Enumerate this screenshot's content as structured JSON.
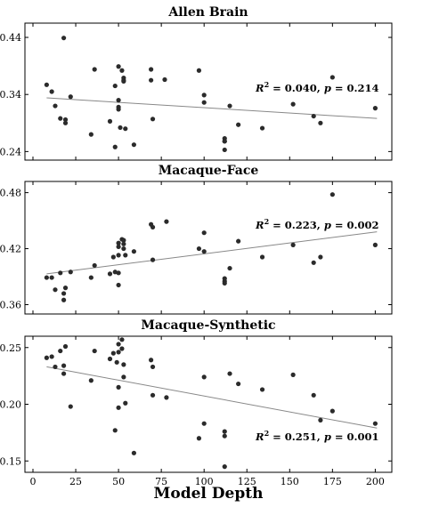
{
  "chart_data": [
    {
      "type": "scatter",
      "title": "Allen Brain",
      "xlim": [
        0,
        205
      ],
      "ylim": [
        0.225,
        0.465
      ],
      "yticks": [
        0.24,
        0.34,
        0.44
      ],
      "ytick_labels": [
        "0.24",
        "0.34",
        "0.44"
      ],
      "fit_line": {
        "x": [
          8,
          201
        ],
        "y": [
          0.334,
          0.298
        ]
      },
      "annotation": {
        "r2_label": "R",
        "r2_value": "= 0.040",
        "p_label": "p",
        "p_value": "= 0.214"
      },
      "points": [
        [
          8,
          0.357
        ],
        [
          11,
          0.345
        ],
        [
          13,
          0.32
        ],
        [
          16,
          0.298
        ],
        [
          18,
          0.439
        ],
        [
          19,
          0.296
        ],
        [
          19,
          0.29
        ],
        [
          22,
          0.336
        ],
        [
          34,
          0.27
        ],
        [
          36,
          0.384
        ],
        [
          45,
          0.293
        ],
        [
          48,
          0.248
        ],
        [
          48,
          0.355
        ],
        [
          50,
          0.389
        ],
        [
          50,
          0.33
        ],
        [
          50,
          0.318
        ],
        [
          50,
          0.314
        ],
        [
          51,
          0.282
        ],
        [
          52,
          0.382
        ],
        [
          53,
          0.369
        ],
        [
          53,
          0.365
        ],
        [
          53,
          0.363
        ],
        [
          54,
          0.28
        ],
        [
          59,
          0.252
        ],
        [
          69,
          0.384
        ],
        [
          69,
          0.365
        ],
        [
          70,
          0.297
        ],
        [
          77,
          0.366
        ],
        [
          97,
          0.382
        ],
        [
          100,
          0.339
        ],
        [
          100,
          0.326
        ],
        [
          112,
          0.263
        ],
        [
          112,
          0.258
        ],
        [
          112,
          0.258
        ],
        [
          112,
          0.243
        ],
        [
          115,
          0.32
        ],
        [
          120,
          0.287
        ],
        [
          134,
          0.281
        ],
        [
          152,
          0.323
        ],
        [
          164,
          0.302
        ],
        [
          168,
          0.29
        ],
        [
          175,
          0.37
        ],
        [
          200,
          0.316
        ]
      ]
    },
    {
      "type": "scatter",
      "title": "Macaque-Face",
      "xlim": [
        0,
        205
      ],
      "ylim": [
        0.35,
        0.492
      ],
      "yticks": [
        0.36,
        0.42,
        0.48
      ],
      "ytick_labels": [
        "0.36",
        "0.42",
        "0.48"
      ],
      "fit_line": {
        "x": [
          8,
          201
        ],
        "y": [
          0.393,
          0.438
        ]
      },
      "annotation": {
        "r2_label": "R",
        "r2_value": "= 0.223",
        "p_label": "p",
        "p_value": "= 0.002"
      },
      "points": [
        [
          8,
          0.389
        ],
        [
          11,
          0.389
        ],
        [
          13,
          0.376
        ],
        [
          16,
          0.394
        ],
        [
          18,
          0.372
        ],
        [
          18,
          0.365
        ],
        [
          19,
          0.378
        ],
        [
          22,
          0.395
        ],
        [
          34,
          0.389
        ],
        [
          36,
          0.402
        ],
        [
          45,
          0.393
        ],
        [
          47,
          0.411
        ],
        [
          48,
          0.395
        ],
        [
          50,
          0.426
        ],
        [
          50,
          0.422
        ],
        [
          50,
          0.413
        ],
        [
          50,
          0.394
        ],
        [
          50,
          0.381
        ],
        [
          52,
          0.43
        ],
        [
          53,
          0.429
        ],
        [
          53,
          0.425
        ],
        [
          53,
          0.42
        ],
        [
          54,
          0.413
        ],
        [
          59,
          0.417
        ],
        [
          69,
          0.446
        ],
        [
          70,
          0.443
        ],
        [
          70,
          0.408
        ],
        [
          78,
          0.449
        ],
        [
          97,
          0.42
        ],
        [
          100,
          0.437
        ],
        [
          100,
          0.417
        ],
        [
          112,
          0.388
        ],
        [
          112,
          0.385
        ],
        [
          112,
          0.383
        ],
        [
          115,
          0.399
        ],
        [
          120,
          0.428
        ],
        [
          134,
          0.411
        ],
        [
          152,
          0.424
        ],
        [
          164,
          0.405
        ],
        [
          168,
          0.411
        ],
        [
          175,
          0.478
        ],
        [
          200,
          0.424
        ]
      ]
    },
    {
      "type": "scatter",
      "title": "Macaque-Synthetic",
      "xlim": [
        0,
        205
      ],
      "ylim": [
        0.14,
        0.26
      ],
      "yticks": [
        0.15,
        0.2,
        0.25
      ],
      "ytick_labels": [
        "0.15",
        "0.20",
        "0.25"
      ],
      "xticks": [
        0,
        25,
        50,
        75,
        100,
        125,
        150,
        175,
        200
      ],
      "xtick_labels": [
        "0",
        "25",
        "50",
        "75",
        "100",
        "125",
        "150",
        "175",
        "200"
      ],
      "xlabel": "Model Depth",
      "fit_line": {
        "x": [
          8,
          201
        ],
        "y": [
          0.233,
          0.179
        ]
      },
      "annotation": {
        "r2_label": "R",
        "r2_value": "= 0.251",
        "p_label": "p",
        "p_value": "= 0.001"
      },
      "points": [
        [
          8,
          0.241
        ],
        [
          11,
          0.242
        ],
        [
          13,
          0.233
        ],
        [
          16,
          0.247
        ],
        [
          18,
          0.234
        ],
        [
          18,
          0.227
        ],
        [
          19,
          0.251
        ],
        [
          22,
          0.198
        ],
        [
          34,
          0.221
        ],
        [
          36,
          0.247
        ],
        [
          45,
          0.24
        ],
        [
          47,
          0.245
        ],
        [
          48,
          0.177
        ],
        [
          49,
          0.237
        ],
        [
          50,
          0.253
        ],
        [
          50,
          0.246
        ],
        [
          50,
          0.215
        ],
        [
          50,
          0.197
        ],
        [
          52,
          0.257
        ],
        [
          52,
          0.249
        ],
        [
          53,
          0.224
        ],
        [
          53,
          0.235
        ],
        [
          54,
          0.201
        ],
        [
          59,
          0.157
        ],
        [
          69,
          0.239
        ],
        [
          70,
          0.233
        ],
        [
          70,
          0.208
        ],
        [
          78,
          0.206
        ],
        [
          97,
          0.17
        ],
        [
          100,
          0.224
        ],
        [
          100,
          0.183
        ],
        [
          112,
          0.176
        ],
        [
          112,
          0.172
        ],
        [
          112,
          0.145
        ],
        [
          115,
          0.227
        ],
        [
          120,
          0.218
        ],
        [
          134,
          0.213
        ],
        [
          152,
          0.226
        ],
        [
          164,
          0.208
        ],
        [
          168,
          0.186
        ],
        [
          175,
          0.194
        ],
        [
          200,
          0.183
        ]
      ]
    }
  ]
}
